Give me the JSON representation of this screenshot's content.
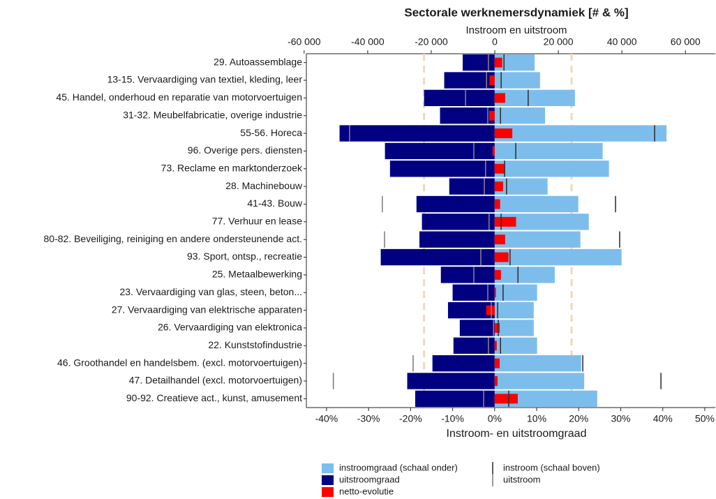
{
  "chart_data": {
    "type": "diverging-bar",
    "title": "Sectorale werknemersdynamiek [# & %]",
    "x2_label": "Instroom en uitstroom",
    "x_label": "Instroom- en uitstroomgraad",
    "categories": [
      "29. Autoassemblage",
      "13-15. Vervaardiging van textiel, kleding, leer",
      "45. Handel, onderhoud en reparatie van motorvoertuigen",
      "31-32. Meubelfabricatie, overige industrie",
      "55-56. Horeca",
      "96. Overige pers. diensten",
      "73. Reclame en marktonderzoek",
      "28. Machinebouw",
      "41-43. Bouw",
      "77. Verhuur en lease",
      "80-82. Beveiliging, reiniging en andere ondersteunende act.",
      "93. Sport, ontsp., recreatie",
      "25. Metaalbewerking",
      "23. Vervaardiging van glas, steen, beton...",
      "27. Vervaardiging van elektrische apparaten",
      "26. Vervaardiging van elektronica",
      "22. Kunststofindustrie",
      "46. Groothandel en handelsbem. (excl. motorvoertuigen)",
      "47. Detailhandel (excl. motorvoertuigen)",
      "90-92. Creatieve act., kunst, amusement"
    ],
    "series": [
      {
        "name": "instroomgraad (schaal onder)",
        "color": "#7dbdec",
        "mark": "bar",
        "axis": "x",
        "values": [
          9.5,
          10.8,
          19.1,
          12.0,
          40.9,
          25.7,
          27.2,
          12.6,
          19.9,
          22.4,
          20.4,
          30.2,
          14.3,
          10.1,
          9.3,
          9.3,
          10.1,
          20.6,
          21.3,
          24.4
        ]
      },
      {
        "name": "uitstroomgraad",
        "color": "#000080",
        "mark": "bar",
        "axis": "x",
        "values": [
          -7.6,
          -12.0,
          -16.8,
          -13.0,
          -36.9,
          -26.1,
          -24.9,
          -10.8,
          -18.6,
          -17.3,
          -17.9,
          -27.1,
          -12.8,
          -10.0,
          -11.1,
          -8.3,
          -9.8,
          -14.8,
          -20.8,
          -18.9
        ]
      },
      {
        "name": "netto-evolutie",
        "color": "#ff0000",
        "mark": "bar",
        "axis": "x",
        "values": [
          1.8,
          -1.2,
          2.5,
          -1.3,
          4.2,
          -0.5,
          2.3,
          2.0,
          1.3,
          5.1,
          2.5,
          3.3,
          1.5,
          0.3,
          -2.0,
          1.2,
          0.5,
          1.2,
          0.7,
          5.5
        ]
      },
      {
        "name": "instroom (schaal boven)",
        "color": "#333333",
        "mark": "tick",
        "axis": "x2",
        "values": [
          2900,
          2000,
          10500,
          1800,
          50300,
          6600,
          3100,
          3700,
          38000,
          2000,
          39300,
          4800,
          7300,
          2600,
          900,
          1100,
          1800,
          27700,
          52300,
          4400
        ]
      },
      {
        "name": "uitstroom",
        "color": "#808080",
        "mark": "tick",
        "axis": "x2",
        "values": [
          -2000,
          -2600,
          -9200,
          -2200,
          -45700,
          -6600,
          -2900,
          -3300,
          -35400,
          -1800,
          -34700,
          -4400,
          -6600,
          -2200,
          -1100,
          -400,
          -2000,
          -25700,
          -50800,
          -3500
        ]
      }
    ],
    "xlim": [
      -44.8,
      52.5
    ],
    "xticks": [
      {
        "value": -40,
        "label": "-40%"
      },
      {
        "value": -30,
        "label": "-30%"
      },
      {
        "value": -20,
        "label": "-20%"
      },
      {
        "value": -10,
        "label": "-10%"
      },
      {
        "value": 0,
        "label": "0%"
      },
      {
        "value": 10,
        "label": "10%"
      },
      {
        "value": 20,
        "label": "20%"
      },
      {
        "value": 30,
        "label": "30%"
      },
      {
        "value": 40,
        "label": "40%"
      },
      {
        "value": 50,
        "label": "50%"
      }
    ],
    "x2lim": [
      -59300,
      69400
    ],
    "x2ticks": [
      {
        "value": -60000,
        "label": "-60 000"
      },
      {
        "value": -40000,
        "label": "-40 000"
      },
      {
        "value": -20000,
        "label": "-20 000"
      },
      0,
      {
        "value": 20000,
        "label": "20 000"
      },
      {
        "value": 40000,
        "label": "40 000"
      },
      {
        "value": 60000,
        "label": "60 000"
      }
    ],
    "reference_lines": {
      "values": [
        -16.8,
        18.3
      ],
      "color": "#f2d8b8"
    },
    "legend": "bottom"
  }
}
